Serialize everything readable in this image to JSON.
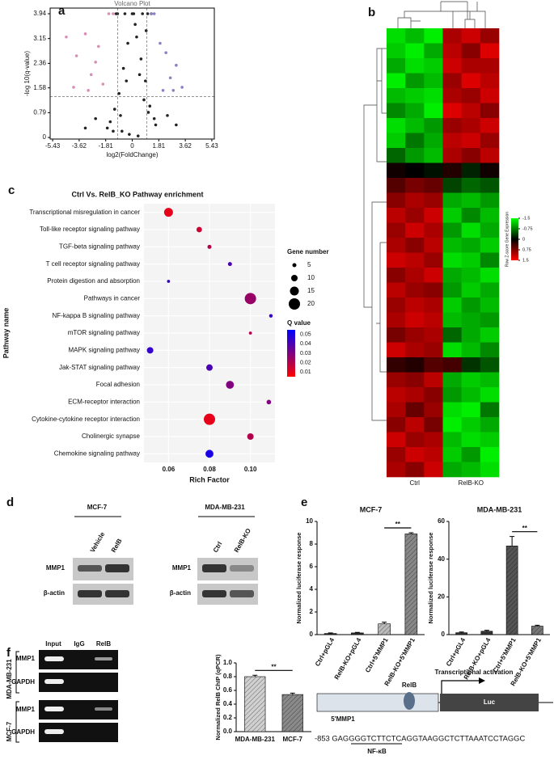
{
  "panel_labels": [
    "a",
    "b",
    "c",
    "d",
    "e",
    "f"
  ],
  "chart_data": [
    {
      "type": "scatter",
      "title": "Volcano Plot",
      "xlabel": "log2(FoldChange)",
      "ylabel": "-log 10(q-value)",
      "xlim": [
        -5.6,
        5.6
      ],
      "ylim": [
        -0.05,
        4.12
      ],
      "xticks": [
        -5.43,
        -3.62,
        -1.81,
        0,
        1.81,
        3.62,
        5.43
      ],
      "yticks": [
        0,
        0.79,
        1.58,
        2.36,
        3.15,
        3.94
      ],
      "thresholds": {
        "x": [
          -1,
          1
        ],
        "y": 1.3
      },
      "series": [
        {
          "color": "#222222",
          "x": [
            -1.5,
            -1.2,
            -0.9,
            -0.6,
            -0.3,
            0,
            0.3,
            0.6,
            0.9,
            1.2,
            1.5,
            -1.7,
            -1.3,
            -0.8,
            -0.4,
            0.2,
            0.5,
            0.8,
            1.1,
            1.6,
            -1.0,
            -0.5,
            0.1,
            0.7,
            1.3,
            -2.5,
            -3.2,
            2.4,
            3.0,
            -0.2,
            0.4,
            -0.7,
            0.95,
            -1.1,
            1.05
          ],
          "values": [
            0.5,
            0.9,
            1.4,
            2.2,
            3.0,
            3.94,
            3.2,
            2.5,
            1.8,
            1.0,
            0.6,
            0.3,
            0.2,
            0.7,
            1.8,
            3.6,
            2.0,
            1.2,
            0.8,
            0.4,
            3.94,
            3.94,
            3.94,
            3.94,
            3.94,
            0.6,
            0.3,
            0.7,
            0.4,
            0.1,
            0.05,
            0.2,
            3.4,
            3.94,
            3.94
          ]
        },
        {
          "color": "#d98fb5",
          "x": [
            -4.5,
            -3.8,
            -3.2,
            -2.8,
            -2.3,
            -2.0,
            -4.0,
            -3.0,
            -2.5,
            -1.6,
            -1.3
          ],
          "values": [
            3.2,
            2.6,
            3.3,
            2.0,
            2.9,
            1.7,
            1.6,
            1.5,
            2.4,
            3.94,
            3.94
          ]
        },
        {
          "color": "#8c7fc4",
          "x": [
            1.5,
            1.9,
            2.3,
            2.6,
            3.0,
            3.4,
            2.1,
            1.3,
            2.8
          ],
          "values": [
            3.94,
            3.0,
            2.7,
            1.9,
            2.3,
            1.6,
            1.5,
            3.94,
            1.5
          ]
        }
      ]
    },
    {
      "type": "heatmap",
      "columns": [
        "Ctrl",
        "Ctrl",
        "Ctrl",
        "RelB-KO",
        "RelB-KO",
        "RelB-KO"
      ],
      "colorbar_label": "Row Z-score Gene Expression",
      "clim": [
        -1.5,
        1.5
      ],
      "cticks": [
        -1.5,
        -0.75,
        0,
        0.75,
        1.5
      ],
      "colors": [
        "#00ff00",
        "#000000",
        "#ff0000"
      ],
      "values": [
        [
          -1.3,
          -1.1,
          -1.4,
          1.0,
          1.2,
          0.9
        ],
        [
          -1.2,
          -1.4,
          -1.0,
          1.1,
          0.8,
          1.3
        ],
        [
          -1.0,
          -1.3,
          -1.2,
          1.2,
          1.0,
          1.0
        ],
        [
          -1.4,
          -0.9,
          -1.1,
          0.9,
          1.3,
          1.1
        ],
        [
          -1.1,
          -1.2,
          -1.3,
          1.0,
          0.9,
          1.2
        ],
        [
          -0.8,
          -1.0,
          -1.4,
          1.3,
          1.1,
          0.8
        ],
        [
          -1.3,
          -1.1,
          -0.9,
          0.9,
          1.0,
          1.2
        ],
        [
          -1.2,
          -0.7,
          -1.0,
          1.1,
          1.2,
          0.9
        ],
        [
          -0.6,
          -0.9,
          -1.1,
          1.0,
          0.8,
          1.1
        ],
        [
          0.1,
          0.0,
          -0.1,
          0.2,
          -0.2,
          0.1
        ],
        [
          0.5,
          0.7,
          0.6,
          -0.4,
          -0.6,
          -0.5
        ],
        [
          0.8,
          1.0,
          0.9,
          -1.0,
          -1.1,
          -0.9
        ],
        [
          1.1,
          0.9,
          1.2,
          -1.2,
          -0.8,
          -1.1
        ],
        [
          0.9,
          1.2,
          1.0,
          -0.9,
          -1.3,
          -1.0
        ],
        [
          1.0,
          0.8,
          1.1,
          -1.1,
          -1.0,
          -1.2
        ],
        [
          1.2,
          1.1,
          0.9,
          -1.3,
          -1.2,
          -0.8
        ],
        [
          0.8,
          1.0,
          1.2,
          -1.0,
          -1.1,
          -1.3
        ],
        [
          1.1,
          0.9,
          0.8,
          -0.9,
          -1.2,
          -1.0
        ],
        [
          0.9,
          1.1,
          1.0,
          -1.2,
          -0.9,
          -1.1
        ],
        [
          1.0,
          1.2,
          1.1,
          -1.1,
          -1.0,
          -0.9
        ],
        [
          0.7,
          0.9,
          1.0,
          -0.6,
          -1.0,
          -1.2
        ],
        [
          1.2,
          1.0,
          0.9,
          -1.3,
          -1.1,
          -0.8
        ],
        [
          0.3,
          0.2,
          0.5,
          0.4,
          -0.3,
          -0.5
        ],
        [
          0.9,
          0.8,
          1.1,
          -1.0,
          -1.2,
          -1.1
        ],
        [
          1.1,
          1.0,
          0.8,
          -0.9,
          -1.1,
          -1.3
        ],
        [
          1.0,
          0.6,
          0.9,
          -1.3,
          -1.4,
          -0.7
        ],
        [
          0.8,
          1.1,
          0.7,
          -1.4,
          -1.2,
          -1.0
        ],
        [
          1.2,
          0.9,
          1.0,
          -1.1,
          -1.3,
          -1.2
        ],
        [
          0.9,
          1.2,
          1.1,
          -1.2,
          -0.9,
          -1.4
        ],
        [
          1.0,
          0.8,
          1.2,
          -1.0,
          -1.1,
          -1.3
        ]
      ]
    },
    {
      "type": "bubble",
      "title": "Ctrl Vs. RelB_KO Pathway enrichment",
      "xlabel": "Rich Factor",
      "ylabel": "Pathway name",
      "categories": [
        "Transcriptional misregulation in cancer",
        "Toll-like receptor signaling pathway",
        "TGF-beta signaling pathway",
        "T cell receptor signaling pathway",
        "Protein digestion and absorption",
        "Pathways in cancer",
        "NF-kappa B signaling pathway",
        "mTOR signaling pathway",
        "MAPK signaling pathway",
        "Jak-STAT signaling pathway",
        "Focal adhesion",
        "ECM-receptor interaction",
        "Cytokine-cytokine receptor interaction",
        "Cholinergic synapse",
        "Chemokine signaling pathway"
      ],
      "x": [
        0.06,
        0.075,
        0.08,
        0.09,
        0.06,
        0.1,
        0.11,
        0.1,
        0.051,
        0.08,
        0.09,
        0.109,
        0.08,
        0.1,
        0.08
      ],
      "sizes": [
        15,
        8,
        5,
        5,
        3,
        20,
        4,
        3,
        10,
        10,
        13,
        6,
        20,
        10,
        13
      ],
      "qvalues": [
        0.01,
        0.015,
        0.02,
        0.04,
        0.045,
        0.025,
        0.045,
        0.02,
        0.045,
        0.04,
        0.03,
        0.03,
        0.01,
        0.02,
        0.05
      ],
      "xlim": [
        0.048,
        0.112
      ],
      "xticks": [
        0.06,
        0.08,
        {
          "value": 0.1,
          "label": "0.10"
        }
      ],
      "grid": true,
      "size_title": "Gene number",
      "size_ticks": [
        5,
        10,
        15,
        20
      ],
      "color_title": "Q value",
      "clim": [
        0.005,
        0.055
      ],
      "color_ticks": [
        0.05,
        0.04,
        0.03,
        0.02,
        0.01
      ]
    },
    {
      "type": "bar",
      "title": "MCF-7",
      "ylabel": "Normalized luciferase response",
      "categories": [
        "Ctrl+pGL4",
        "RelB-KO+pGL4",
        "Ctrl+5'MMP1",
        "RelB-KO+5'MMP1"
      ],
      "values": [
        0.1,
        0.15,
        0.95,
        8.9
      ],
      "errors": [
        0.05,
        0.05,
        0.15,
        0.1
      ],
      "colors": [
        "#333333",
        "#333333",
        "#bbbbbb",
        "#888888"
      ],
      "hatch": [
        false,
        false,
        true,
        true
      ],
      "ylim": [
        0,
        10
      ],
      "yticks": [
        0,
        2,
        4,
        6,
        8,
        10
      ],
      "significance": [
        {
          "label": "**",
          "from": 2,
          "to": 3
        }
      ]
    },
    {
      "type": "bar",
      "title": "MDA-MB-231",
      "ylabel": "Normalized luciferase response",
      "categories": [
        "Ctrl+pGL4",
        "RelB-KO+pGL4",
        "Ctrl+5'MMP1",
        "RelB-KO+5'MMP1"
      ],
      "values": [
        1,
        1.8,
        47,
        4.5
      ],
      "errors": [
        0.4,
        0.5,
        5,
        0.5
      ],
      "colors": [
        "#333333",
        "#333333",
        "#555555",
        "#777777"
      ],
      "hatch": [
        false,
        false,
        true,
        true
      ],
      "ylim": [
        0,
        60
      ],
      "yticks": [
        0,
        20,
        40,
        60
      ],
      "significance": [
        {
          "label": "**",
          "from": 2,
          "to": 3
        }
      ]
    },
    {
      "type": "bar",
      "ylabel": "Normalized RelB ChIP (qPCR)",
      "categories": [
        "MDA-MB-231",
        "MCF-7"
      ],
      "values": [
        0.8,
        0.54
      ],
      "errors": [
        0.02,
        0.02
      ],
      "colors": [
        "#d0d0d0",
        "#8a8a8a"
      ],
      "hatch": [
        true,
        true
      ],
      "ylim": [
        0,
        1
      ],
      "yticks": [
        {
          "value": 0,
          "label": "0.0"
        },
        0.2,
        0.4,
        0.6,
        0.8,
        {
          "value": 1,
          "label": "1.0"
        }
      ],
      "significance": [
        {
          "label": "**",
          "from": 0,
          "to": 1
        }
      ]
    }
  ],
  "western_blot": [
    {
      "cell_line": "MCF-7",
      "lanes": [
        "Vehicle",
        "RelB"
      ],
      "bands": [
        "MMP1",
        "β-actin"
      ]
    },
    {
      "cell_line": "MDA-MB-231",
      "lanes": [
        "Ctrl",
        "RelB-KO"
      ],
      "bands": [
        "MMP1",
        "β-actin"
      ]
    }
  ],
  "chip_gel": {
    "lanes": [
      "Input",
      "IgG",
      "RelB"
    ],
    "cell_lines": [
      "MDA-MB-231",
      "MCF-7"
    ],
    "bands": [
      "MMP1",
      "GAPDH",
      "MMP1",
      "GAPDH"
    ]
  },
  "schematic": {
    "factor": "RelB",
    "activation": "Transcriptional activation",
    "reporter": "Luc",
    "promoter": "5'MMP1",
    "sequence": "-853 GAGGGGTCTTCTCAGGTAAGGCTCTTAAATCCTAGGC",
    "site": "NF-κB"
  }
}
